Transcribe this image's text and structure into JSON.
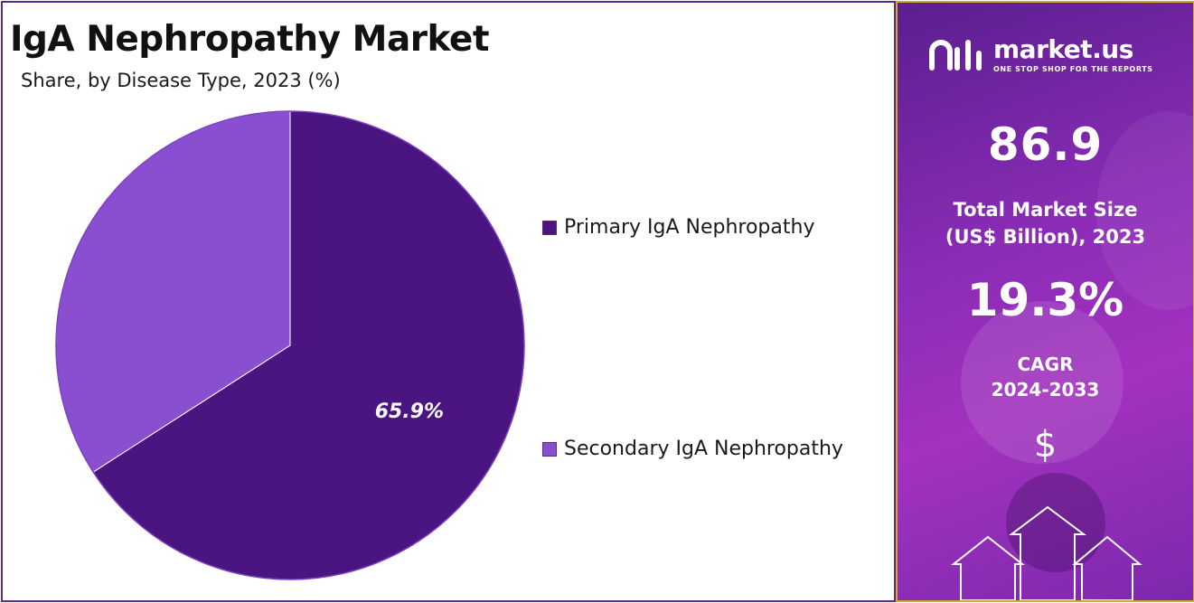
{
  "chart_data": {
    "type": "pie",
    "title": "IgA Nephropathy Market",
    "subtitle": "Share, by Disease Type, 2023 (%)",
    "categories": [
      "Primary IgA Nephropathy",
      "Secondary IgA Nephropathy"
    ],
    "values": [
      65.9,
      34.1
    ],
    "data_labels": [
      "65.9%",
      ""
    ],
    "colors": [
      "#4a1580",
      "#8a4fd0"
    ],
    "legend_position": "right"
  },
  "side_panel": {
    "logo": {
      "name": "market.us",
      "tagline": "ONE STOP SHOP FOR THE REPORTS",
      "icon": "market-us-logo-icon"
    },
    "market_size": {
      "value": "86.9",
      "label_line1": "Total Market Size",
      "label_line2": "(US$ Billion), 2023"
    },
    "cagr": {
      "value": "19.3%",
      "label_line1": "CAGR",
      "label_line2": "2024-2033"
    },
    "currency_symbol": "$",
    "decorations": [
      "dollar-icon",
      "up-arrow-icon"
    ],
    "accent_border": "#d9a62a"
  }
}
